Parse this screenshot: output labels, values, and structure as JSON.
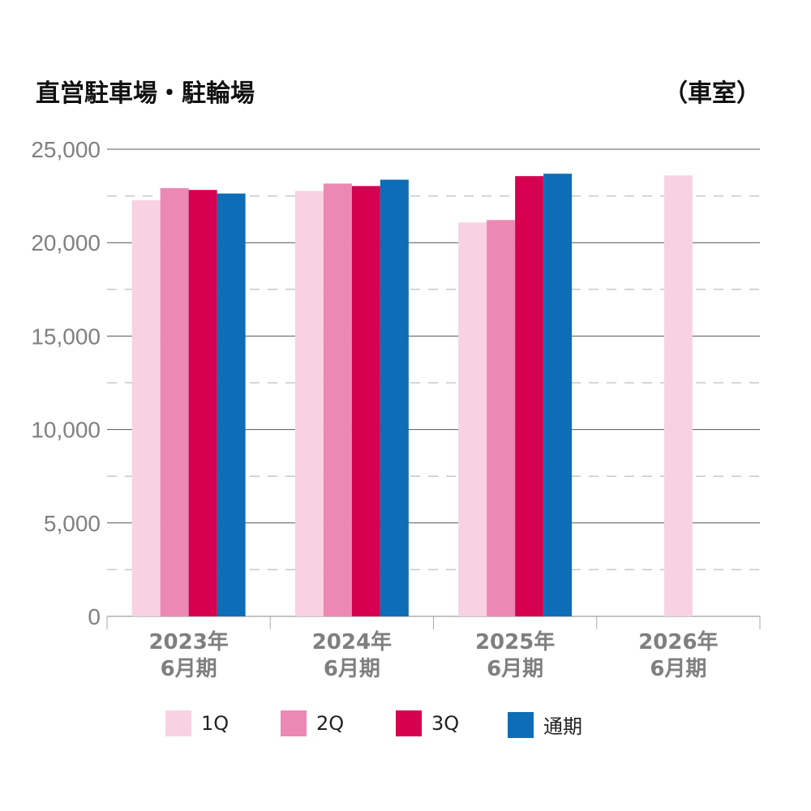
{
  "chart_data": {
    "type": "bar",
    "title": "直営駐車場・駐輪場",
    "unit": "（車室）",
    "categories": [
      [
        "2023年",
        "6月期"
      ],
      [
        "2024年",
        "6月期"
      ],
      [
        "2025年",
        "6月期"
      ],
      [
        "2026年",
        "6月期"
      ]
    ],
    "ylim": [
      0,
      25000
    ],
    "yticks": [
      0,
      5000,
      10000,
      15000,
      20000,
      25000
    ],
    "ytick_labels": [
      "0",
      "5,000",
      "10,000",
      "15,000",
      "20,000",
      "25,000"
    ],
    "grid": true,
    "legend_position": "bottom",
    "series": [
      {
        "name": "1Q",
        "color": "#f8d2e3",
        "values": [
          22270,
          22770,
          21080,
          23600
        ]
      },
      {
        "name": "2Q",
        "color": "#ec88b4",
        "values": [
          22920,
          23160,
          21210,
          null
        ]
      },
      {
        "name": "3Q",
        "color": "#d5004f",
        "values": [
          22820,
          23030,
          23560,
          null
        ]
      },
      {
        "name": "通期",
        "color": "#0e6db6",
        "values": [
          22630,
          23370,
          23690,
          null
        ]
      }
    ]
  }
}
